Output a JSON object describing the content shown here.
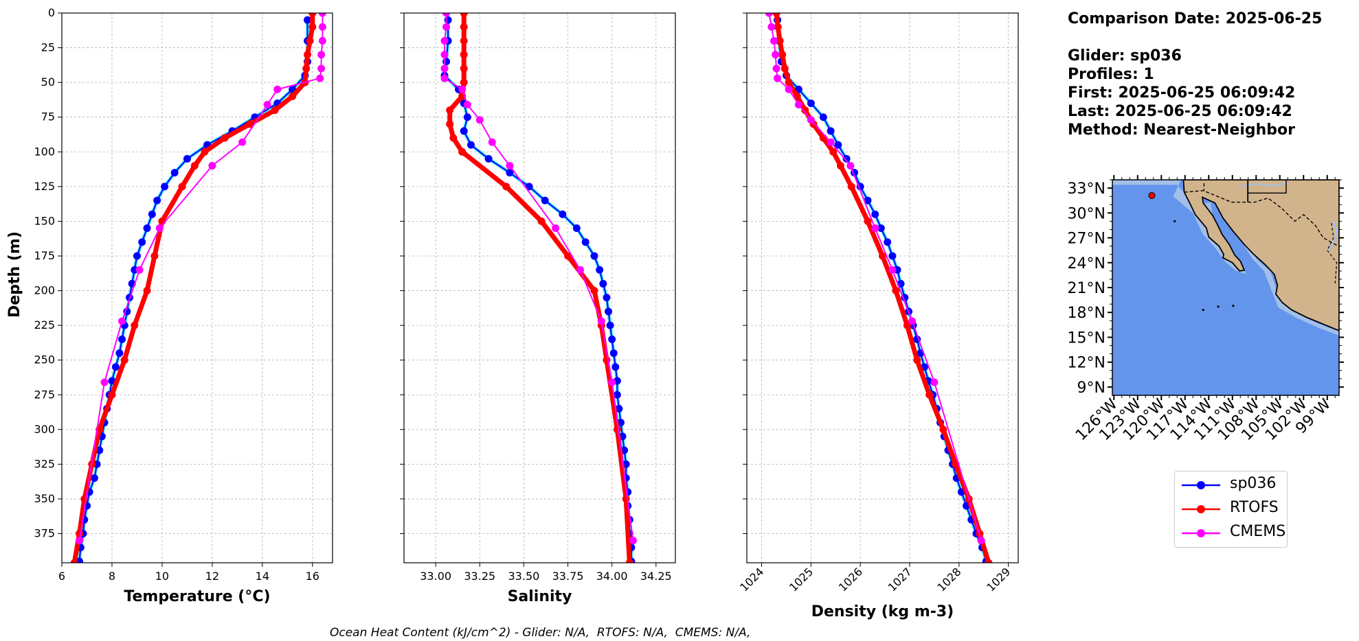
{
  "info": {
    "comparison_date": "Comparison Date: 2025-06-25",
    "glider": "Glider: sp036",
    "profiles": "Profiles: 1",
    "first": "First: 2025-06-25 06:09:42",
    "last": "Last: 2025-06-25 06:09:42",
    "method": "Method: Nearest-Neighbor"
  },
  "footer": "Ocean Heat Content (kJ/cm^2) - Glider: N/A,  RTOFS: N/A,  CMEMS: N/A,",
  "colors": {
    "glider": "#0000ff",
    "glider_interp": "#00e5ee",
    "rtofs": "#ff0000",
    "cmems": "#ff00ff",
    "ocean": "#6495ed",
    "shelf": "#a3bfe8",
    "land": "#d2b48c",
    "grid": "#b0b0b0"
  },
  "legend": [
    {
      "name": "sp036",
      "color": "#0000ff"
    },
    {
      "name": "RTOFS",
      "color": "#ff0000"
    },
    {
      "name": "CMEMS",
      "color": "#ff00ff"
    }
  ],
  "chart_data": [
    {
      "type": "line",
      "ylabel": "Depth (m)",
      "xlabel": "Temperature (°C)",
      "xlim": [
        6,
        16.8
      ],
      "ylim": [
        396,
        0
      ],
      "xticks": [
        6,
        8,
        10,
        12,
        14,
        16
      ],
      "yticks": [
        0,
        25,
        50,
        75,
        100,
        125,
        150,
        175,
        200,
        225,
        250,
        275,
        300,
        325,
        350,
        375
      ],
      "grid": true,
      "series": [
        {
          "name": "sp036",
          "depth": [
            5,
            20,
            35,
            45,
            55,
            65,
            75,
            85,
            95,
            105,
            115,
            125,
            135,
            145,
            155,
            165,
            175,
            185,
            195,
            205,
            215,
            225,
            235,
            245,
            255,
            265,
            275,
            285,
            295,
            305,
            315,
            325,
            335,
            345,
            355,
            365,
            375,
            385,
            395
          ],
          "values": [
            15.8,
            15.8,
            15.8,
            15.7,
            15.2,
            14.6,
            13.7,
            12.8,
            11.8,
            11.0,
            10.5,
            10.1,
            9.8,
            9.6,
            9.4,
            9.2,
            9.0,
            8.9,
            8.8,
            8.7,
            8.6,
            8.5,
            8.4,
            8.3,
            8.15,
            8.0,
            7.9,
            7.8,
            7.7,
            7.6,
            7.5,
            7.4,
            7.3,
            7.1,
            7.0,
            6.9,
            6.85,
            6.75,
            6.7
          ]
        },
        {
          "name": "RTOFS",
          "depth": [
            0,
            10,
            20,
            30,
            40,
            50,
            60,
            70,
            80,
            90,
            100,
            110,
            125,
            150,
            175,
            200,
            225,
            250,
            275,
            300,
            325,
            350,
            375,
            396
          ],
          "values": [
            16.0,
            16.0,
            15.9,
            15.8,
            15.75,
            15.7,
            15.2,
            14.5,
            13.5,
            12.5,
            11.7,
            11.3,
            10.8,
            10.0,
            9.7,
            9.4,
            8.9,
            8.5,
            8.0,
            7.5,
            7.2,
            6.9,
            6.7,
            6.5
          ]
        },
        {
          "name": "CMEMS",
          "depth": [
            0,
            10,
            20,
            30,
            40,
            47,
            55,
            66,
            93,
            110,
            155,
            185,
            222,
            266,
            380
          ],
          "values": [
            16.4,
            16.4,
            16.4,
            16.35,
            16.35,
            16.3,
            14.6,
            14.2,
            13.2,
            12.0,
            9.9,
            9.1,
            8.4,
            7.7,
            6.7
          ]
        }
      ]
    },
    {
      "type": "line",
      "xlabel": "Salinity",
      "xlim": [
        32.82,
        34.36
      ],
      "ylim": [
        396,
        0
      ],
      "xticks": [
        33.0,
        33.25,
        33.5,
        33.75,
        34.0,
        34.25
      ],
      "xtick_labels": [
        "33.00",
        "33.25",
        "33.50",
        "33.75",
        "34.00",
        "34.25"
      ],
      "grid": true,
      "series": [
        {
          "name": "sp036",
          "depth": [
            5,
            20,
            35,
            45,
            55,
            65,
            75,
            85,
            95,
            105,
            115,
            125,
            135,
            145,
            155,
            165,
            175,
            185,
            195,
            205,
            215,
            225,
            235,
            245,
            255,
            265,
            275,
            285,
            295,
            305,
            315,
            325,
            335,
            345,
            355,
            365,
            375,
            385,
            395
          ],
          "values": [
            33.07,
            33.07,
            33.06,
            33.05,
            33.13,
            33.16,
            33.18,
            33.16,
            33.2,
            33.3,
            33.42,
            33.53,
            33.62,
            33.72,
            33.8,
            33.85,
            33.9,
            33.93,
            33.95,
            33.97,
            33.98,
            33.99,
            34.0,
            34.01,
            34.02,
            34.03,
            34.03,
            34.04,
            34.05,
            34.06,
            34.07,
            34.08,
            34.08,
            34.09,
            34.09,
            34.1,
            34.1,
            34.11,
            34.11
          ]
        },
        {
          "name": "RTOFS",
          "depth": [
            0,
            10,
            20,
            30,
            40,
            50,
            60,
            70,
            80,
            90,
            100,
            125,
            150,
            175,
            200,
            225,
            250,
            300,
            350,
            396
          ],
          "values": [
            33.16,
            33.16,
            33.16,
            33.16,
            33.16,
            33.16,
            33.15,
            33.08,
            33.08,
            33.1,
            33.15,
            33.4,
            33.6,
            33.75,
            33.9,
            33.94,
            33.97,
            34.03,
            34.08,
            34.1
          ]
        },
        {
          "name": "CMEMS",
          "depth": [
            0,
            10,
            20,
            30,
            40,
            47,
            55,
            66,
            77,
            93,
            110,
            155,
            185,
            222,
            266,
            380
          ],
          "values": [
            33.06,
            33.06,
            33.05,
            33.05,
            33.05,
            33.05,
            33.15,
            33.18,
            33.25,
            33.32,
            33.42,
            33.68,
            33.82,
            33.94,
            34.0,
            34.12
          ]
        }
      ]
    },
    {
      "type": "line",
      "xlabel": "Density (kg m-3)",
      "xlim": [
        1023.7,
        1029.2
      ],
      "ylim": [
        396,
        0
      ],
      "xticks": [
        1024,
        1025,
        1026,
        1027,
        1028,
        1029
      ],
      "grid": true,
      "series": [
        {
          "name": "sp036",
          "depth": [
            5,
            20,
            35,
            45,
            55,
            65,
            75,
            85,
            95,
            105,
            115,
            125,
            135,
            145,
            155,
            165,
            175,
            185,
            195,
            205,
            215,
            225,
            235,
            245,
            255,
            265,
            275,
            285,
            295,
            305,
            315,
            325,
            335,
            345,
            355,
            365,
            375,
            385,
            395
          ],
          "values": [
            1024.32,
            1024.35,
            1024.4,
            1024.5,
            1024.75,
            1025.0,
            1025.25,
            1025.4,
            1025.55,
            1025.72,
            1025.88,
            1026.0,
            1026.15,
            1026.3,
            1026.42,
            1026.55,
            1026.65,
            1026.75,
            1026.82,
            1026.9,
            1026.98,
            1027.07,
            1027.15,
            1027.22,
            1027.3,
            1027.38,
            1027.47,
            1027.55,
            1027.62,
            1027.7,
            1027.78,
            1027.87,
            1027.95,
            1028.05,
            1028.15,
            1028.25,
            1028.35,
            1028.47,
            1028.55
          ]
        },
        {
          "name": "RTOFS",
          "depth": [
            0,
            10,
            20,
            30,
            40,
            50,
            60,
            70,
            80,
            90,
            100,
            110,
            125,
            150,
            175,
            200,
            225,
            250,
            275,
            300,
            325,
            350,
            375,
            396
          ],
          "values": [
            1024.3,
            1024.33,
            1024.37,
            1024.42,
            1024.47,
            1024.55,
            1024.72,
            1024.88,
            1025.05,
            1025.25,
            1025.45,
            1025.6,
            1025.82,
            1026.15,
            1026.45,
            1026.72,
            1026.95,
            1027.15,
            1027.4,
            1027.68,
            1027.93,
            1028.2,
            1028.42,
            1028.6
          ]
        },
        {
          "name": "CMEMS",
          "depth": [
            0,
            10,
            20,
            30,
            40,
            47,
            55,
            66,
            77,
            93,
            110,
            155,
            185,
            222,
            266,
            380
          ],
          "values": [
            1024.15,
            1024.2,
            1024.25,
            1024.28,
            1024.3,
            1024.32,
            1024.55,
            1024.75,
            1025.0,
            1025.4,
            1025.8,
            1026.3,
            1026.65,
            1027.05,
            1027.5,
            1028.45
          ]
        }
      ]
    },
    {
      "type": "map",
      "lat_ticks": [
        "33°N",
        "30°N",
        "27°N",
        "24°N",
        "21°N",
        "18°N",
        "15°N",
        "12°N",
        "9°N"
      ],
      "lon_ticks": [
        "126°W",
        "123°W",
        "120°W",
        "117°W",
        "114°W",
        "111°W",
        "108°W",
        "105°W",
        "102°W",
        "99°W"
      ],
      "lat_values": [
        33,
        30,
        27,
        24,
        21,
        18,
        15,
        12,
        9
      ],
      "lon_values": [
        -126,
        -123,
        -120,
        -117,
        -114,
        -111,
        -108,
        -105,
        -102,
        -99
      ],
      "lon_range": [
        -126.2,
        -97.5
      ],
      "lat_range": [
        8,
        34
      ],
      "glider_position": {
        "lon": -121.2,
        "lat": 32.1,
        "color": "#ff0000"
      }
    }
  ]
}
